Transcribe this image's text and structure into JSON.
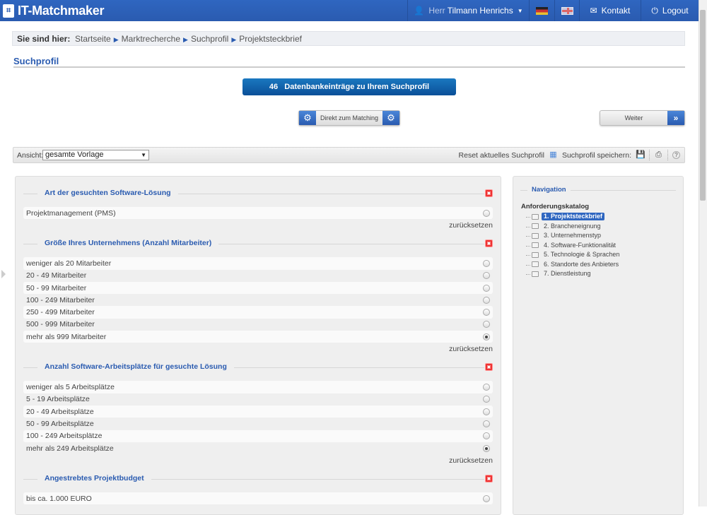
{
  "header": {
    "logo": "IT-Matchmaker",
    "salutation": "Herr",
    "user": "Tilmann Henrichs",
    "contact": "Kontakt",
    "logout": "Logout"
  },
  "breadcrumb": {
    "label": "Sie sind hier:",
    "items": [
      "Startseite",
      "Marktrecherche",
      "Suchprofil",
      "Projektsteckbrief"
    ]
  },
  "page_title": "Suchprofil",
  "results_button": "46   Datenbankeinträge zu Ihrem Suchprofil",
  "matching_button": "Direkt zum Matching",
  "next_button": "Weiter",
  "toolbar": {
    "view_label": "Ansicht:",
    "view_value": "gesamte Vorlage",
    "reset": "Reset aktuelles Suchprofil",
    "save": "Suchprofil speichern:"
  },
  "sections": [
    {
      "title": "Art der gesuchten Software-Lösung",
      "options": [
        "Projektmanagement (PMS)"
      ],
      "selected": -1,
      "reset": "zurücksetzen"
    },
    {
      "title": "Größe Ihres Unternehmens (Anzahl Mitarbeiter)",
      "options": [
        "weniger als 20 Mitarbeiter",
        "20 - 49 Mitarbeiter",
        "50 - 99 Mitarbeiter",
        "100 - 249 Mitarbeiter",
        "250 - 499 Mitarbeiter",
        "500 - 999 Mitarbeiter",
        "mehr als 999 Mitarbeiter"
      ],
      "selected": 6,
      "reset": "zurücksetzen"
    },
    {
      "title": "Anzahl Software-Arbeitsplätze für gesuchte Lösung",
      "options": [
        "weniger als 5 Arbeitsplätze",
        "5 - 19 Arbeitsplätze",
        "20 - 49 Arbeitsplätze",
        "50 - 99 Arbeitsplätze",
        "100 - 249 Arbeitsplätze",
        "mehr als 249 Arbeitsplätze"
      ],
      "selected": 5,
      "reset": "zurücksetzen"
    },
    {
      "title": "Angestrebtes Projektbudget",
      "options": [
        "bis ca. 1.000 EURO"
      ],
      "selected": -1
    }
  ],
  "navigation": {
    "title": "Navigation",
    "catalog": "Anforderungskatalog",
    "items": [
      "1. Projektsteckbrief",
      "2. Brancheneignung",
      "3. Unternehmenstyp",
      "4. Software-Funktionalität",
      "5. Technologie & Sprachen",
      "6. Standorte des Anbieters",
      "7. Dienstleistung"
    ],
    "selected": 0
  }
}
